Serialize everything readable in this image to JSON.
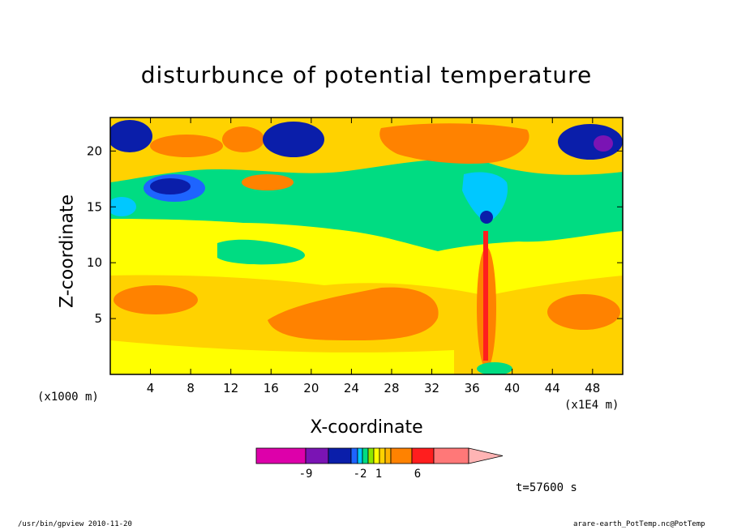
{
  "chart_data": {
    "type": "heatmap",
    "title": "disturbunce of potential temperature",
    "xlabel": "X-coordinate",
    "ylabel": "Z-coordinate",
    "x_unit_label": "(x1000 m)",
    "x_scale_label": "(x1E4 m)",
    "xlim": [
      0,
      51
    ],
    "ylim": [
      0,
      23
    ],
    "x_ticks": [
      4,
      8,
      12,
      16,
      20,
      24,
      28,
      32,
      36,
      40,
      44,
      48
    ],
    "y_ticks": [
      5,
      10,
      15,
      20
    ],
    "grid": false,
    "colorbar": {
      "tick_labels": [
        "-9",
        "-2",
        "1",
        "6"
      ],
      "colors": [
        "#dd00aa",
        "#7a14b4",
        "#0a1eaa",
        "#1e64ff",
        "#00c8ff",
        "#00dc82",
        "#8ce600",
        "#ffff00",
        "#ffd200",
        "#ffb400",
        "#ff8200",
        "#ff1e1e",
        "#ff7878",
        "#ffb4b4"
      ]
    },
    "time_label": "t=57600 s"
  },
  "footer": {
    "left": "/usr/bin/gpview  2010-11-20",
    "right": "arare-earth_PotTemp.nc@PotTemp"
  }
}
